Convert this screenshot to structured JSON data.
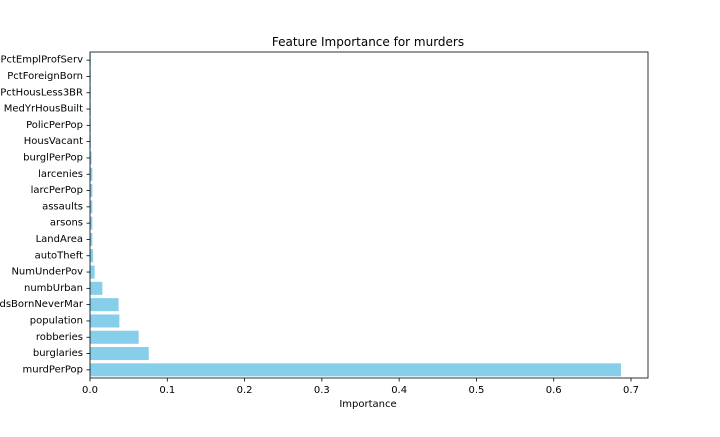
{
  "chart_data": {
    "type": "bar",
    "orientation": "horizontal",
    "title": "Feature Importance for murders",
    "xlabel": "Importance",
    "ylabel": "",
    "xlim": [
      0,
      0.722
    ],
    "xticks": [
      0.0,
      0.1,
      0.2,
      0.3,
      0.4,
      0.5,
      0.6,
      0.7
    ],
    "xtick_labels": [
      "0.0",
      "0.1",
      "0.2",
      "0.3",
      "0.4",
      "0.5",
      "0.6",
      "0.7"
    ],
    "grid": false,
    "legend": "none",
    "bar_color": "#87CEEB",
    "categories": [
      "murdPerPop",
      "burglaries",
      "robberies",
      "population",
      "PctKidsBornNeverMar",
      "numbUrban",
      "NumUnderPov",
      "autoTheft",
      "LandArea",
      "arsons",
      "assaults",
      "larcPerPop",
      "larcenies",
      "burglPerPop",
      "HousVacant",
      "PolicPerPop",
      "MedYrHousBuilt",
      "PctHousLess3BR",
      "PctForeignBorn",
      "PctEmplProfServ"
    ],
    "values": [
      0.687,
      0.076,
      0.063,
      0.038,
      0.037,
      0.016,
      0.006,
      0.004,
      0.003,
      0.003,
      0.003,
      0.003,
      0.003,
      0.002,
      0.001,
      0.001,
      0.001,
      0.001,
      0.001,
      0.001
    ]
  }
}
